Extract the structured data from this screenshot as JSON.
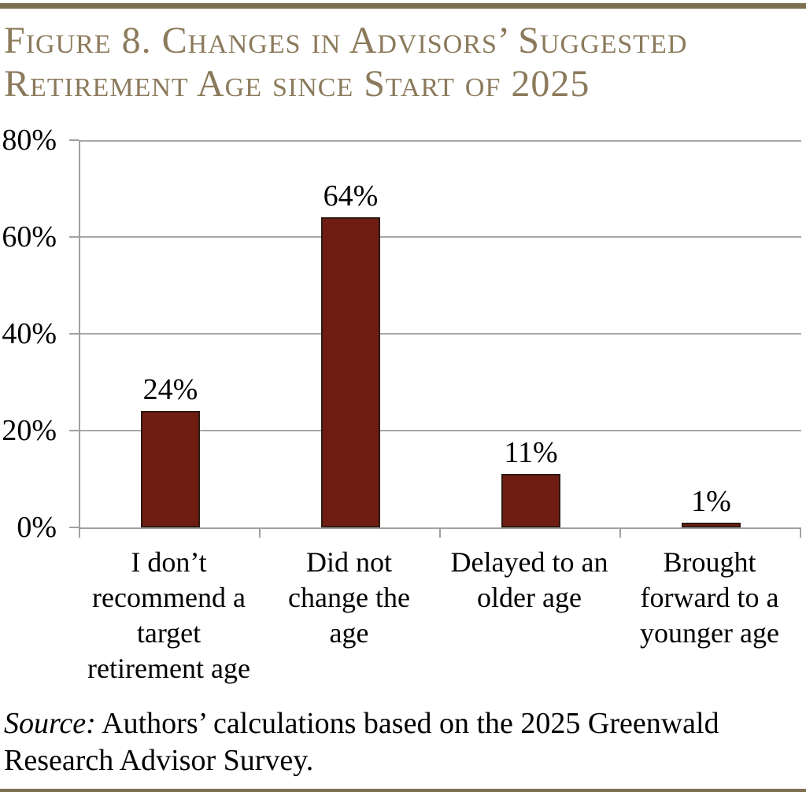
{
  "page": {
    "title": "Figure 8. Changes in Advisors’ Suggested\nRetirement Age since Start of 2025",
    "source_prefix": "Source:",
    "source_text": "Authors’ calculations based on the 2025 Greenwald\nResearch Advisor Survey."
  },
  "colors": {
    "title_text": "#8b7a5b",
    "rule": "#7d6f51",
    "bar_fill": "#6f1d12",
    "bar_border": "#2e1a12",
    "gridline": "#a8a8a8",
    "axis": "#a0a0a0",
    "label_text": "#000000"
  },
  "chart_data": {
    "type": "bar",
    "title": "Figure 8. Changes in Advisors’ Suggested Retirement Age since Start of 2025",
    "categories": [
      "I don’t recommend a target retirement age",
      "Did not change the age",
      "Delayed to an older age",
      "Brought forward to a younger age"
    ],
    "category_lines": [
      "I don’t\nrecommend a\ntarget\nretirement age",
      "Did not\nchange the\nage",
      "Delayed to an\nolder age",
      "Brought\nforward to a\nyounger age"
    ],
    "values": [
      24,
      64,
      11,
      1
    ],
    "data_labels": [
      "24%",
      "64%",
      "11%",
      "1%"
    ],
    "yticks": [
      {
        "label": "0%",
        "value": 0
      },
      {
        "label": "20%",
        "value": 20
      },
      {
        "label": "40%",
        "value": 40
      },
      {
        "label": "60%",
        "value": 60
      },
      {
        "label": "80%",
        "value": 80
      }
    ],
    "ylim": [
      0,
      80
    ],
    "xlabel": "",
    "ylabel": "",
    "grid": "horizontal",
    "legend": "none"
  }
}
